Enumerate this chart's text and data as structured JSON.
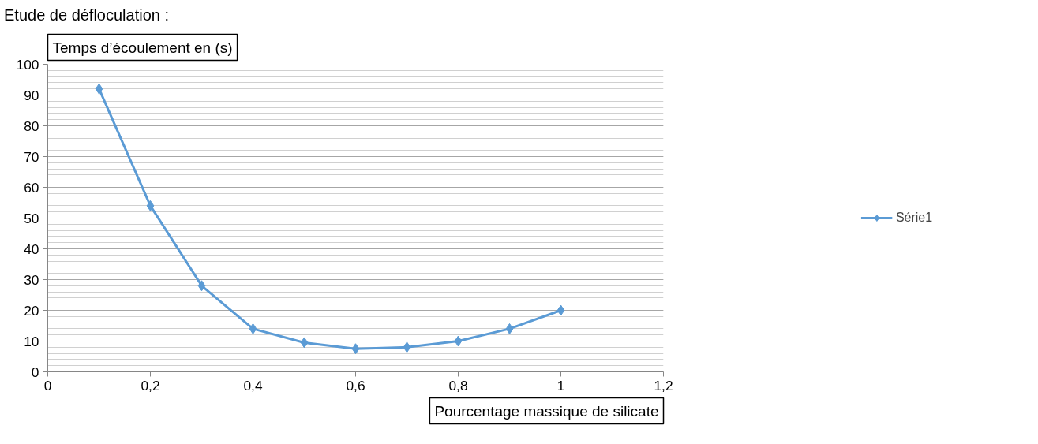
{
  "chart_data": {
    "type": "line",
    "title": "Etude de défloculation :",
    "xlabel": "Pourcentage massique de silicate",
    "ylabel": "Temps d’écoulement en (s)",
    "x": [
      0.1,
      0.2,
      0.3,
      0.4,
      0.5,
      0.6,
      0.7,
      0.8,
      0.9,
      1.0
    ],
    "series": [
      {
        "name": "Série1",
        "color": "#5b9bd5",
        "values": [
          92,
          54,
          28,
          14,
          9.5,
          7.5,
          8,
          10,
          14,
          20
        ]
      }
    ],
    "xlim": [
      0,
      1.2
    ],
    "xticks": [
      0,
      {
        "value": 0.2,
        "label": "0,2"
      },
      {
        "value": 0.4,
        "label": "0,4"
      },
      {
        "value": 0.6,
        "label": "0,6"
      },
      {
        "value": 0.8,
        "label": "0,8"
      },
      1,
      {
        "value": 1.2,
        "label": "1,2"
      }
    ],
    "ylim": [
      0,
      100
    ],
    "yticks": [
      0,
      10,
      20,
      30,
      40,
      50,
      60,
      70,
      80,
      90,
      100
    ],
    "grid": "y",
    "legend": "right",
    "marker": "diamond",
    "line_style": "solid"
  }
}
